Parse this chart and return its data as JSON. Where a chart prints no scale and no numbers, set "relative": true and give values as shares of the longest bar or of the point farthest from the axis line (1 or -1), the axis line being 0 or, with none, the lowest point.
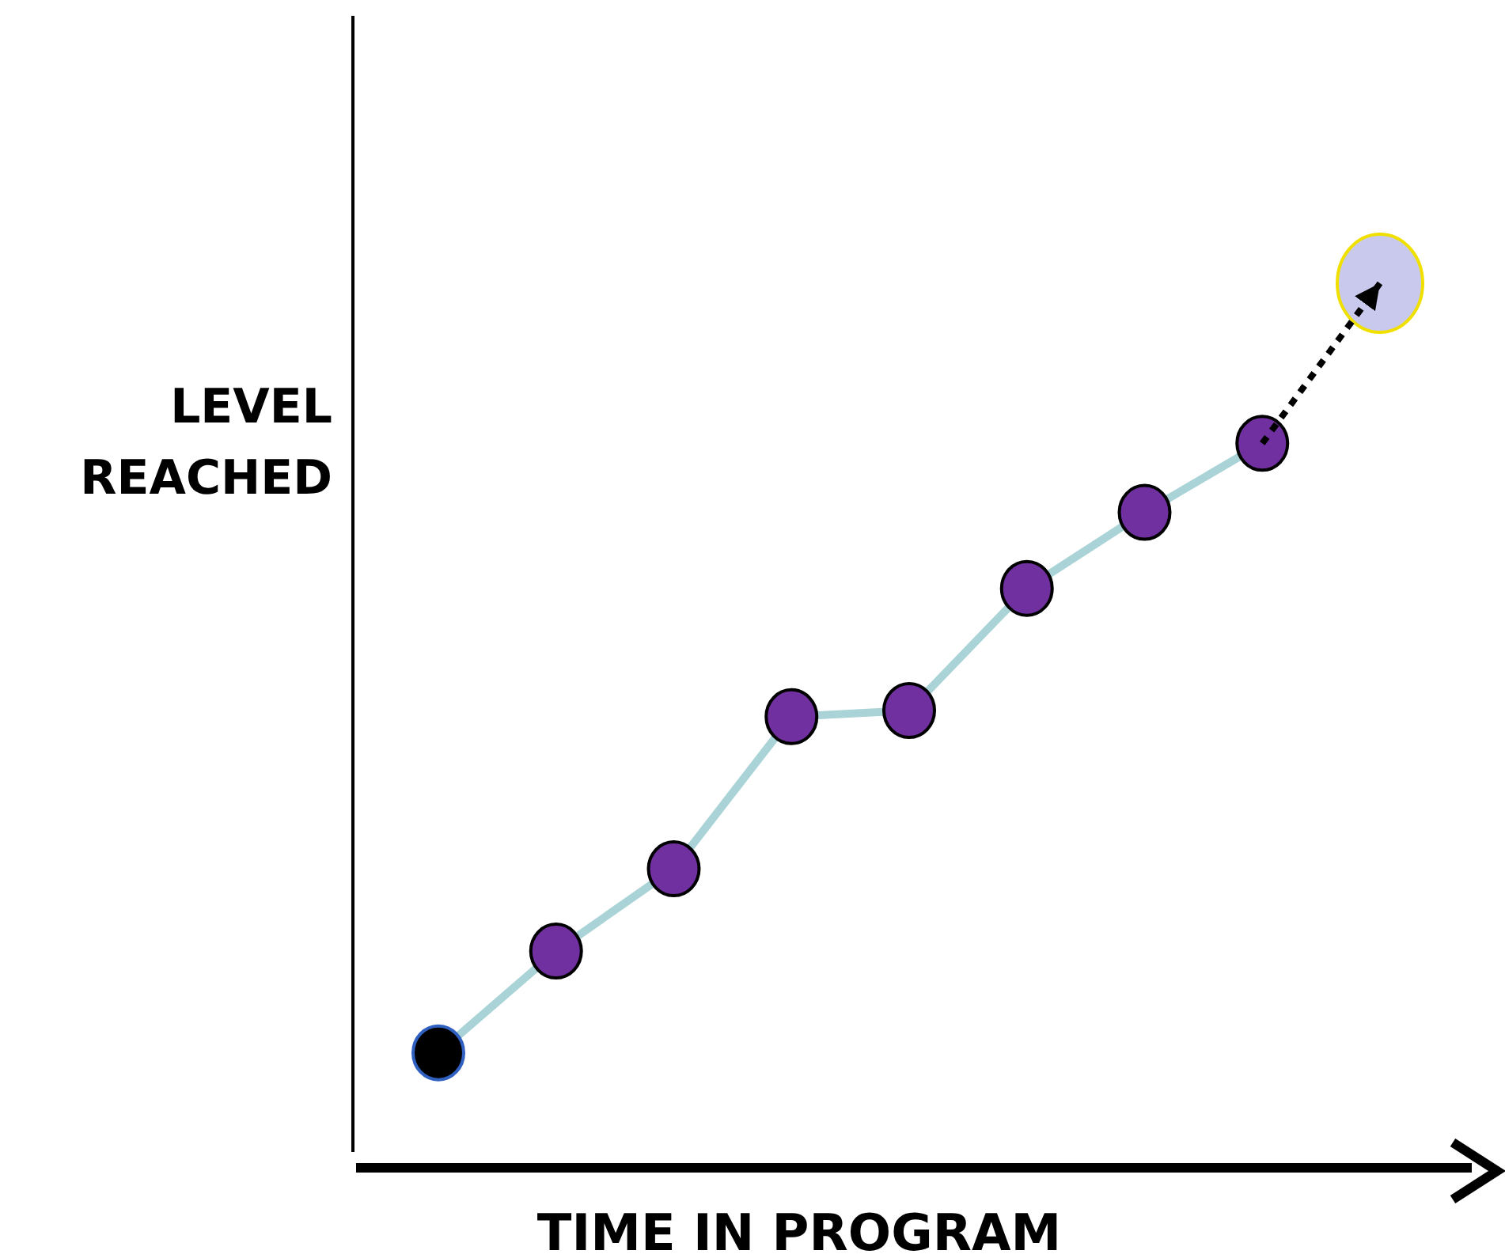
{
  "chart_data": {
    "type": "line",
    "relative": true,
    "xlabel": "TIME IN PROGRAM",
    "ylabel": "LEVEL REACHED",
    "categories": [
      null,
      null,
      null,
      null,
      null,
      null,
      null,
      null,
      null
    ],
    "marker": "circle",
    "series": [
      {
        "color": "#a9d3d6",
        "colors": [
          "#000000",
          "#7030a0",
          "#7030a0",
          "#7030a0",
          "#7030a0",
          "#7030a0",
          "#7030a0",
          "#7030a0",
          null
        ],
        "values": [
          0.13,
          0.245,
          0.338,
          0.51,
          0.517,
          0.655,
          0.741,
          0.819,
          null
        ]
      },
      {
        "color": "#000000",
        "line_style": "dotted",
        "marker": "none",
        "colors": [
          null,
          null,
          null,
          null,
          null,
          null,
          null,
          null,
          "#c9c9ee"
        ],
        "values": [
          null,
          null,
          null,
          null,
          null,
          null,
          null,
          0.819,
          1.0
        ]
      }
    ]
  }
}
